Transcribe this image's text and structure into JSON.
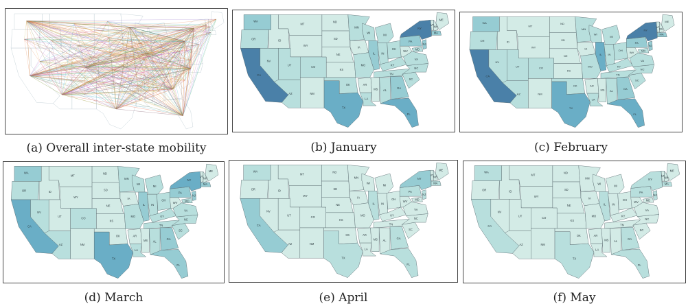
{
  "figure": {
    "panels": [
      {
        "id": "a",
        "caption": "(a) Overall inter-state mobility",
        "kind": "flows"
      },
      {
        "id": "b",
        "caption": "(b) January",
        "kind": "choropleth"
      },
      {
        "id": "c",
        "caption": "(c) February",
        "kind": "choropleth"
      },
      {
        "id": "d",
        "caption": "(d) March",
        "kind": "choropleth"
      },
      {
        "id": "e",
        "caption": "(e) April",
        "kind": "choropleth"
      },
      {
        "id": "f",
        "caption": "(f) May",
        "kind": "choropleth"
      }
    ]
  },
  "colors": {
    "level0": "#d3ebe6",
    "level1": "#b8dfdd",
    "level2": "#96ccd3",
    "level3": "#6aaec6",
    "level4": "#4a80a8",
    "border": "#5a6b70",
    "flow_palette": [
      "#f0a13a",
      "#e8743a",
      "#3a9a4a",
      "#d957a8",
      "#8a62c2",
      "#3ab0c8",
      "#c8b13a",
      "#a0522d"
    ]
  },
  "state_labels": [
    "WA",
    "OR",
    "CA",
    "NV",
    "ID",
    "MT",
    "WY",
    "UT",
    "AZ",
    "CO",
    "NM",
    "ND",
    "SD",
    "NE",
    "KS",
    "OK",
    "TX",
    "MN",
    "IA",
    "MO",
    "AR",
    "LA",
    "WI",
    "IL",
    "MI",
    "IN",
    "OH",
    "KY",
    "TN",
    "MS",
    "AL",
    "GA",
    "FL",
    "SC",
    "NC",
    "VA",
    "WV",
    "PA",
    "NY",
    "ME",
    "VT",
    "NH",
    "MA",
    "NJ",
    "MD"
  ],
  "intensity": {
    "b": {
      "CA": 4,
      "NY": 4,
      "TX": 3,
      "FL": 3,
      "IL": 2,
      "WA": 2,
      "GA": 2,
      "PA": 2,
      "NJ": 2,
      "MA": 2,
      "OH": 1,
      "MI": 1,
      "NC": 1,
      "VA": 1,
      "AZ": 1,
      "CO": 1,
      "NV": 1,
      "OR": 1,
      "MN": 1,
      "TN": 1,
      "MD": 1,
      "IN": 1,
      "WI": 1,
      "MO": 1,
      "SC": 1,
      "AL": 1,
      "LA": 1,
      "KY": 1,
      "OK": 1,
      "UT": 1
    },
    "c": {
      "CA": 4,
      "NY": 4,
      "TX": 3,
      "FL": 3,
      "IL": 3,
      "WA": 2,
      "GA": 2,
      "PA": 2,
      "NJ": 2,
      "MA": 2,
      "OH": 1,
      "MI": 1,
      "NC": 1,
      "VA": 1,
      "AZ": 1,
      "CO": 1,
      "NV": 1,
      "OR": 1,
      "MN": 1,
      "TN": 1,
      "MD": 1,
      "IN": 1,
      "WI": 1,
      "MO": 1,
      "SC": 1,
      "AL": 1,
      "LA": 1,
      "KY": 1,
      "OK": 1,
      "UT": 1
    },
    "d": {
      "CA": 3,
      "NY": 3,
      "TX": 3,
      "FL": 2,
      "IL": 2,
      "WA": 2,
      "GA": 2,
      "PA": 2,
      "NJ": 2,
      "MA": 2,
      "OH": 1,
      "MI": 1,
      "NC": 1,
      "VA": 1,
      "AZ": 1,
      "CO": 1,
      "NV": 1,
      "OR": 1,
      "MN": 1,
      "TN": 1,
      "MD": 1,
      "IN": 1,
      "WI": 1,
      "MO": 1,
      "SC": 1,
      "AL": 1,
      "LA": 1,
      "KY": 1
    },
    "e": {
      "CA": 2,
      "NY": 2,
      "TX": 1,
      "FL": 1,
      "IL": 1,
      "WA": 1,
      "GA": 1,
      "PA": 1,
      "NJ": 1,
      "MA": 1
    },
    "f": {
      "CA": 1,
      "NY": 1,
      "TX": 1,
      "FL": 1,
      "IL": 1,
      "WA": 1,
      "GA": 1,
      "PA": 1,
      "NJ": 1,
      "MA": 1
    }
  }
}
